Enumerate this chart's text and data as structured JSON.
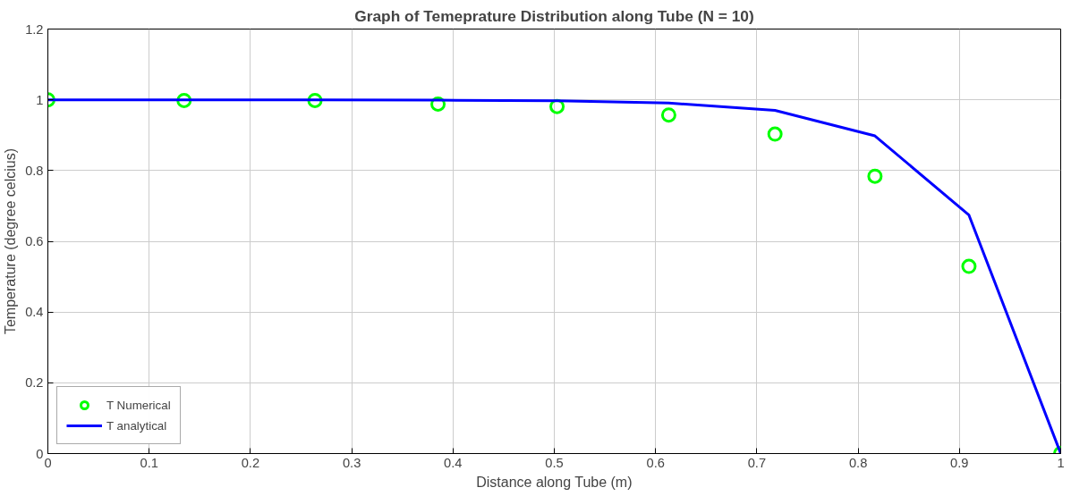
{
  "chart_data": {
    "type": "line",
    "title": "Graph of Temeprature Distribution along Tube (N = 10)",
    "xlabel": "Distance along Tube (m)",
    "ylabel": "Temperature (degree celcius)",
    "series": [
      {
        "name": "T Numerical",
        "type": "scatter",
        "color": "#00ff00",
        "marker": "circle",
        "x": [
          0,
          0.1345,
          0.2637,
          0.3852,
          0.5027,
          0.613,
          0.7179,
          0.8166,
          0.9094,
          1.0
        ],
        "values": [
          1.0,
          0.998,
          0.998,
          0.988,
          0.981,
          0.957,
          0.903,
          0.784,
          0.529,
          0.0
        ]
      },
      {
        "name": "T analytical",
        "color": "#0000ff",
        "line_style": "solid",
        "x": [
          0,
          0.1345,
          0.2637,
          0.3852,
          0.5027,
          0.613,
          0.7179,
          0.8166,
          0.9094,
          1.0
        ],
        "values": [
          1.0,
          1.0,
          1.0,
          0.999,
          0.997,
          0.991,
          0.97,
          0.898,
          0.674,
          0.0
        ]
      }
    ],
    "xlim": [
      0,
      1
    ],
    "xticks": [
      0,
      0.1,
      0.2,
      0.3,
      0.4,
      0.5,
      0.6,
      0.7,
      0.8,
      0.9,
      1
    ],
    "ylim": [
      0,
      1.2
    ],
    "yticks": [
      0,
      0.2,
      0.4,
      0.6,
      0.8,
      1,
      1.2
    ],
    "grid": true,
    "legend": "bottom left"
  }
}
